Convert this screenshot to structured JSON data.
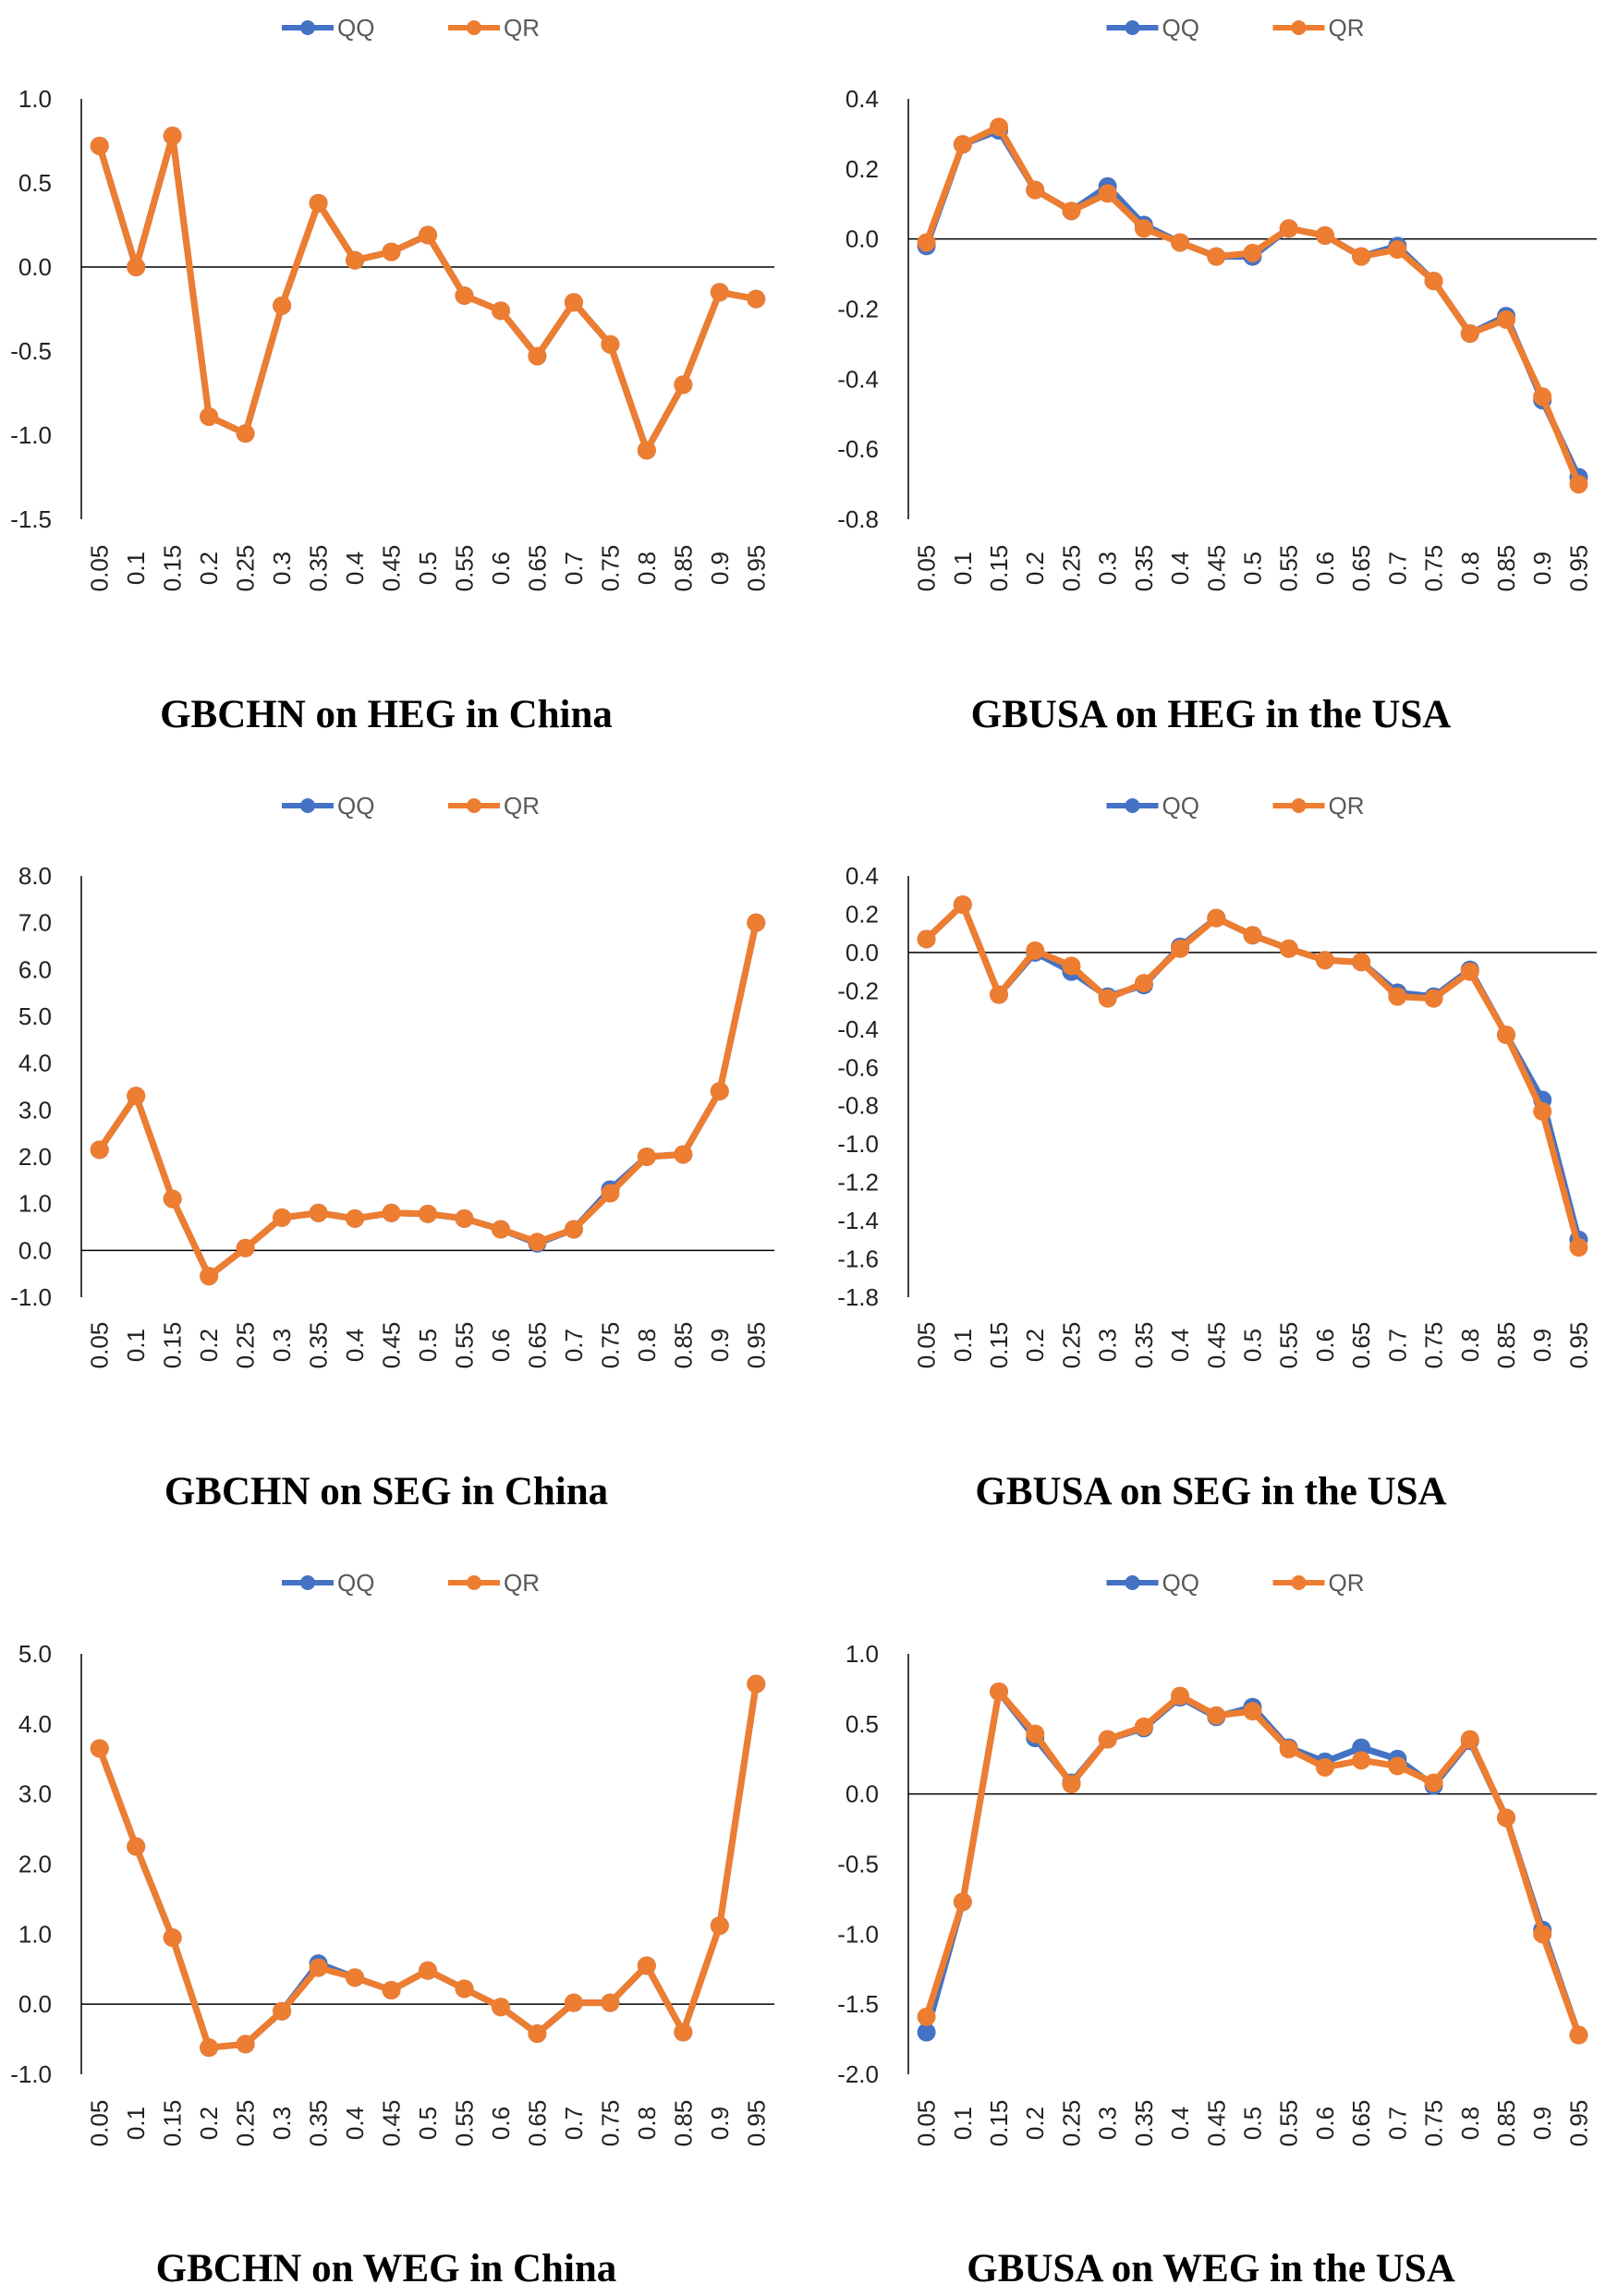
{
  "colors": {
    "QQ": "#4472C4",
    "QR": "#ED7D31",
    "axis": "#000000"
  },
  "chart_data": [
    {
      "type": "line",
      "title": "GBCHN on HEG in China",
      "legend": [
        "QQ",
        "QR"
      ],
      "legend_position": "top-center",
      "categories": [
        "0.05",
        "0.1",
        "0.15",
        "0.2",
        "0.25",
        "0.3",
        "0.35",
        "0.4",
        "0.45",
        "0.5",
        "0.55",
        "0.6",
        "0.65",
        "0.7",
        "0.75",
        "0.8",
        "0.85",
        "0.9",
        "0.95"
      ],
      "ylim": [
        -1.5,
        1.0
      ],
      "yticks": [
        "1.0",
        "0.5",
        "0.0",
        "-0.5",
        "-1.0",
        "-1.5"
      ],
      "series": [
        {
          "name": "QQ",
          "values": [
            0.72,
            0.0,
            0.78,
            -0.89,
            -0.99,
            -0.23,
            0.38,
            0.04,
            0.09,
            0.19,
            -0.17,
            -0.26,
            -0.53,
            -0.21,
            -0.46,
            -1.09,
            -0.7,
            -0.15,
            -0.19
          ]
        },
        {
          "name": "QR",
          "values": [
            0.72,
            0.0,
            0.78,
            -0.89,
            -0.99,
            -0.23,
            0.38,
            0.04,
            0.09,
            0.19,
            -0.17,
            -0.26,
            -0.53,
            -0.21,
            -0.46,
            -1.09,
            -0.7,
            -0.15,
            -0.19
          ]
        }
      ]
    },
    {
      "type": "line",
      "title": "GBUSA on HEG in the USA",
      "legend": [
        "QQ",
        "QR"
      ],
      "legend_position": "top-center",
      "categories": [
        "0.05",
        "0.1",
        "0.15",
        "0.2",
        "0.25",
        "0.3",
        "0.35",
        "0.4",
        "0.45",
        "0.5",
        "0.55",
        "0.6",
        "0.65",
        "0.7",
        "0.75",
        "0.8",
        "0.85",
        "0.9",
        "0.95"
      ],
      "ylim": [
        -0.8,
        0.4
      ],
      "yticks": [
        "0.4",
        "0.2",
        "0.0",
        "-0.2",
        "-0.4",
        "-0.6",
        "-0.8"
      ],
      "series": [
        {
          "name": "QQ",
          "values": [
            -0.02,
            0.27,
            0.31,
            0.14,
            0.08,
            0.15,
            0.04,
            -0.01,
            -0.05,
            -0.05,
            0.03,
            0.01,
            -0.05,
            -0.02,
            -0.12,
            -0.27,
            -0.22,
            -0.46,
            -0.68
          ]
        },
        {
          "name": "QR",
          "values": [
            -0.01,
            0.27,
            0.32,
            0.14,
            0.08,
            0.13,
            0.03,
            -0.01,
            -0.05,
            -0.04,
            0.03,
            0.01,
            -0.05,
            -0.03,
            -0.12,
            -0.27,
            -0.23,
            -0.45,
            -0.7
          ]
        }
      ]
    },
    {
      "type": "line",
      "title": "GBCHN on SEG in China",
      "legend": [
        "QQ",
        "QR"
      ],
      "legend_position": "top-center",
      "categories": [
        "0.05",
        "0.1",
        "0.15",
        "0.2",
        "0.25",
        "0.3",
        "0.35",
        "0.4",
        "0.45",
        "0.5",
        "0.55",
        "0.6",
        "0.65",
        "0.7",
        "0.75",
        "0.8",
        "0.85",
        "0.9",
        "0.95"
      ],
      "ylim": [
        -1.0,
        8.0
      ],
      "yticks": [
        "8.0",
        "7.0",
        "6.0",
        "5.0",
        "4.0",
        "3.0",
        "2.0",
        "1.0",
        "0.0",
        "-1.0"
      ],
      "series": [
        {
          "name": "QQ",
          "values": [
            2.15,
            3.3,
            1.1,
            -0.55,
            0.05,
            0.7,
            0.8,
            0.68,
            0.8,
            0.78,
            0.68,
            0.45,
            0.15,
            0.45,
            1.3,
            2.0,
            2.05,
            3.4,
            7.0
          ]
        },
        {
          "name": "QR",
          "values": [
            2.15,
            3.3,
            1.1,
            -0.55,
            0.05,
            0.7,
            0.8,
            0.68,
            0.8,
            0.78,
            0.68,
            0.45,
            0.18,
            0.45,
            1.22,
            2.0,
            2.05,
            3.4,
            7.0
          ]
        }
      ]
    },
    {
      "type": "line",
      "title": "GBUSA on SEG in the USA",
      "legend": [
        "QQ",
        "QR"
      ],
      "legend_position": "top-center",
      "categories": [
        "0.05",
        "0.1",
        "0.15",
        "0.2",
        "0.25",
        "0.3",
        "0.35",
        "0.4",
        "0.45",
        "0.5",
        "0.55",
        "0.6",
        "0.65",
        "0.7",
        "0.75",
        "0.8",
        "0.85",
        "0.9",
        "0.95"
      ],
      "ylim": [
        -1.8,
        0.4
      ],
      "yticks": [
        "0.4",
        "0.2",
        "0.0",
        "-0.2",
        "-0.4",
        "-0.6",
        "-0.8",
        "-1.0",
        "-1.2",
        "-1.4",
        "-1.6",
        "-1.8"
      ],
      "series": [
        {
          "name": "QQ",
          "values": [
            0.07,
            0.25,
            -0.22,
            0.0,
            -0.1,
            -0.23,
            -0.17,
            0.03,
            0.18,
            0.09,
            0.02,
            -0.04,
            -0.05,
            -0.21,
            -0.23,
            -0.09,
            -0.43,
            -0.77,
            -1.5
          ]
        },
        {
          "name": "QR",
          "values": [
            0.07,
            0.25,
            -0.22,
            0.01,
            -0.07,
            -0.24,
            -0.16,
            0.02,
            0.18,
            0.09,
            0.02,
            -0.04,
            -0.05,
            -0.23,
            -0.24,
            -0.1,
            -0.43,
            -0.83,
            -1.54
          ]
        }
      ]
    },
    {
      "type": "line",
      "title": "GBCHN on WEG in China",
      "legend": [
        "QQ",
        "QR"
      ],
      "legend_position": "top-center",
      "categories": [
        "0.05",
        "0.1",
        "0.15",
        "0.2",
        "0.25",
        "0.3",
        "0.35",
        "0.4",
        "0.45",
        "0.5",
        "0.55",
        "0.6",
        "0.65",
        "0.7",
        "0.75",
        "0.8",
        "0.85",
        "0.9",
        "0.95"
      ],
      "ylim": [
        -1.0,
        5.0
      ],
      "yticks": [
        "5.0",
        "4.0",
        "3.0",
        "2.0",
        "1.0",
        "0.0",
        "-1.0"
      ],
      "series": [
        {
          "name": "QQ",
          "values": [
            3.65,
            2.25,
            0.95,
            -0.62,
            -0.57,
            -0.1,
            0.58,
            0.38,
            0.2,
            0.48,
            0.22,
            -0.04,
            -0.42,
            0.02,
            0.02,
            0.55,
            -0.4,
            1.12,
            4.57
          ]
        },
        {
          "name": "QR",
          "values": [
            3.65,
            2.25,
            0.95,
            -0.62,
            -0.57,
            -0.1,
            0.52,
            0.38,
            0.2,
            0.48,
            0.22,
            -0.04,
            -0.42,
            0.02,
            0.02,
            0.55,
            -0.4,
            1.12,
            4.57
          ]
        }
      ]
    },
    {
      "type": "line",
      "title": "GBUSA on WEG in the USA",
      "legend": [
        "QQ",
        "QR"
      ],
      "legend_position": "top-center",
      "categories": [
        "0.05",
        "0.1",
        "0.15",
        "0.2",
        "0.25",
        "0.3",
        "0.35",
        "0.4",
        "0.45",
        "0.5",
        "0.55",
        "0.6",
        "0.65",
        "0.7",
        "0.75",
        "0.8",
        "0.85",
        "0.9",
        "0.95"
      ],
      "ylim": [
        -2.0,
        1.0
      ],
      "yticks": [
        "1.0",
        "0.5",
        "0.0",
        "-0.5",
        "-1.0",
        "-1.5",
        "-2.0"
      ],
      "series": [
        {
          "name": "QQ",
          "values": [
            -1.7,
            -0.77,
            0.73,
            0.4,
            0.08,
            0.39,
            0.47,
            0.69,
            0.55,
            0.62,
            0.33,
            0.23,
            0.33,
            0.25,
            0.06,
            0.38,
            -0.17,
            -0.97,
            -1.72
          ]
        },
        {
          "name": "QR",
          "values": [
            -1.59,
            -0.77,
            0.73,
            0.43,
            0.07,
            0.39,
            0.48,
            0.7,
            0.56,
            0.59,
            0.32,
            0.19,
            0.24,
            0.2,
            0.08,
            0.39,
            -0.17,
            -1.0,
            -1.72
          ]
        }
      ]
    }
  ]
}
